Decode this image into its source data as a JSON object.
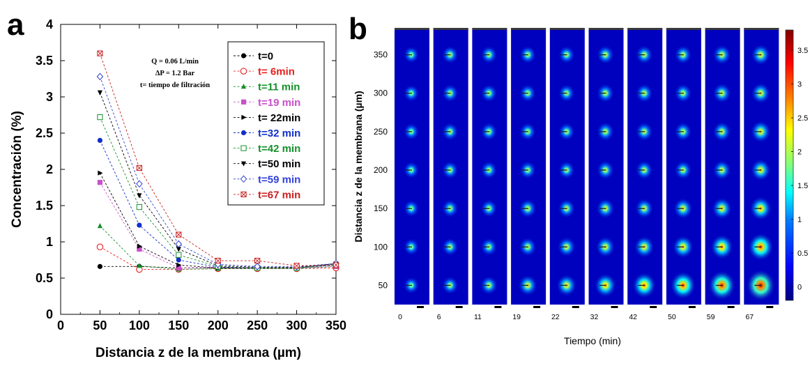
{
  "panel_a": {
    "letter": "a",
    "notes": [
      "Q = 0.06 L/min",
      "ΔP = 1.2 Bar",
      "t= tiempo de filtración"
    ],
    "chart_data": {
      "type": "line",
      "xlabel": "Distancia z de la membrana (µm)",
      "ylabel": "Concentración (%)",
      "xlim": [
        0,
        350
      ],
      "ylim": [
        0,
        4
      ],
      "xticks": [
        "0",
        "50",
        "100",
        "150",
        "200",
        "250",
        "300",
        "350"
      ],
      "yticks": [
        "0",
        "0.5",
        "1",
        "1.5",
        "2",
        "2.5",
        "3",
        "3.5",
        "4"
      ],
      "legend_position": "top-right",
      "x": [
        50,
        100,
        150,
        200,
        250,
        300,
        350
      ],
      "series": [
        {
          "name": "t=0",
          "color": "#000000",
          "marker": "circle-filled",
          "values": [
            0.66,
            0.66,
            0.64,
            0.64,
            0.64,
            0.64,
            0.7
          ]
        },
        {
          "name": "t= 6min",
          "color": "#e8201e",
          "marker": "circle-open",
          "values": [
            0.93,
            0.62,
            0.62,
            0.63,
            0.63,
            0.63,
            0.64
          ]
        },
        {
          "name": "t=11 min",
          "color": "#14902a",
          "marker": "triangle-filled",
          "values": [
            1.22,
            0.67,
            0.62,
            0.63,
            0.63,
            0.63,
            0.66
          ]
        },
        {
          "name": "t=19 min",
          "color": "#c850c8",
          "marker": "square-filled",
          "values": [
            1.82,
            0.9,
            0.64,
            0.65,
            0.64,
            0.64,
            0.66
          ]
        },
        {
          "name": "t= 22min",
          "color": "#000000",
          "marker": "triangle-right-filled",
          "values": [
            1.95,
            0.94,
            0.68,
            0.64,
            0.64,
            0.64,
            0.68
          ]
        },
        {
          "name": "t=32 min",
          "color": "#1030c8",
          "marker": "circle-filled",
          "values": [
            2.4,
            1.23,
            0.75,
            0.65,
            0.64,
            0.64,
            0.69
          ]
        },
        {
          "name": "t=42 min",
          "color": "#14902a",
          "marker": "square-open",
          "values": [
            2.72,
            1.48,
            0.82,
            0.66,
            0.64,
            0.64,
            0.68
          ]
        },
        {
          "name": "t=50 min",
          "color": "#000000",
          "marker": "triangle-down-filled",
          "values": [
            3.06,
            1.64,
            0.9,
            0.67,
            0.65,
            0.65,
            0.7
          ]
        },
        {
          "name": "t=59 min",
          "color": "#3040d8",
          "marker": "diamond-open",
          "values": [
            3.28,
            1.8,
            0.97,
            0.69,
            0.66,
            0.66,
            0.7
          ]
        },
        {
          "name": "t=67 min",
          "color": "#c81e1e",
          "marker": "square-x",
          "values": [
            3.6,
            2.02,
            1.1,
            0.74,
            0.74,
            0.67,
            0.68
          ]
        }
      ]
    }
  },
  "panel_b": {
    "letter": "b",
    "chart_data": {
      "type": "heatmap",
      "xlabel": "Tiempo (min)",
      "ylabel": "Distancia z de la membrana (µm)",
      "time_labels": [
        "0",
        "6",
        "11",
        "19",
        "22",
        "32",
        "42",
        "50",
        "59",
        "67"
      ],
      "ylim": [
        25,
        385
      ],
      "yticks": [
        "50",
        "100",
        "150",
        "200",
        "250",
        "300",
        "350"
      ],
      "spot_rows": [
        350,
        300,
        250,
        200,
        150,
        100,
        50
      ],
      "colorbar": {
        "range": [
          -0.2,
          3.8
        ],
        "ticks": [
          "0",
          "0.5",
          "1",
          "1.5",
          "2",
          "2.5",
          "3",
          "3.5"
        ],
        "colors": [
          "#00007f",
          "#0000ff",
          "#007fff",
          "#00ffff",
          "#7fff7f",
          "#ffff00",
          "#ff7f00",
          "#ff0000",
          "#7f0000"
        ]
      },
      "peak_intensity": [
        [
          2.2,
          2.3,
          2.3,
          2.3,
          2.3,
          2.4,
          2.4,
          2.4,
          2.5,
          2.6
        ],
        [
          2.2,
          2.3,
          2.3,
          2.3,
          2.3,
          2.4,
          2.4,
          2.4,
          2.5,
          2.6
        ],
        [
          2.2,
          2.3,
          2.3,
          2.3,
          2.3,
          2.4,
          2.4,
          2.4,
          2.5,
          2.7
        ],
        [
          2.2,
          2.3,
          2.3,
          2.3,
          2.3,
          2.4,
          2.4,
          2.4,
          2.5,
          2.7
        ],
        [
          2.2,
          2.3,
          2.3,
          2.4,
          2.4,
          2.5,
          2.5,
          2.6,
          2.7,
          2.9
        ],
        [
          2.2,
          2.3,
          2.3,
          2.4,
          2.5,
          2.6,
          2.7,
          2.8,
          3.0,
          3.3
        ],
        [
          2.2,
          2.3,
          2.4,
          2.6,
          2.7,
          2.9,
          3.1,
          3.3,
          3.5,
          3.7
        ]
      ]
    }
  }
}
